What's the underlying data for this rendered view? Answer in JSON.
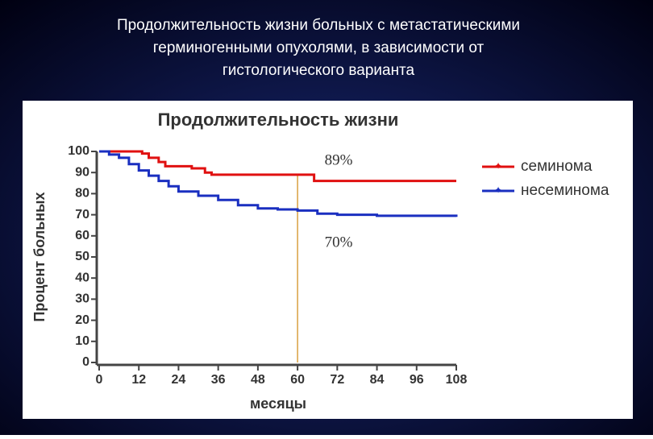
{
  "slide": {
    "title_lines": [
      "Продолжительность жизни больных с метастатическими",
      "герминогенными опухолями, в зависимости от",
      "гистологического варианта"
    ]
  },
  "chart_data": {
    "type": "line",
    "step": true,
    "title": "Продолжительность жизни",
    "x_label": "месяцы",
    "y_label": "Процент больных",
    "xlim": [
      0,
      108
    ],
    "xticks": [
      0,
      12,
      24,
      36,
      48,
      60,
      72,
      84,
      96,
      108
    ],
    "ylim": [
      0,
      100
    ],
    "yticks": [
      0,
      10,
      20,
      30,
      40,
      50,
      60,
      70,
      80,
      90,
      100
    ],
    "series": [
      {
        "name": "семинома",
        "color": "#e01010",
        "x": [
          0,
          10,
          13,
          15,
          18,
          20,
          28,
          32,
          34,
          65,
          108
        ],
        "values": [
          100,
          100,
          99,
          97,
          95,
          93,
          92,
          90,
          89,
          86,
          86
        ]
      },
      {
        "name": "несеминома",
        "color": "#1a2fc0",
        "x": [
          0,
          3,
          6,
          9,
          12,
          15,
          18,
          21,
          24,
          30,
          36,
          42,
          48,
          54,
          60,
          66,
          72,
          84,
          108
        ],
        "values": [
          100,
          98.5,
          97,
          94,
          91,
          88.5,
          86,
          83.5,
          81,
          79,
          77,
          74.5,
          73,
          72.5,
          72,
          70.5,
          70,
          69.5,
          69
        ]
      }
    ],
    "reference_x": 60,
    "reference_color": "#d9a040",
    "annotations": [
      "89%",
      "70%"
    ],
    "legend": "right"
  }
}
